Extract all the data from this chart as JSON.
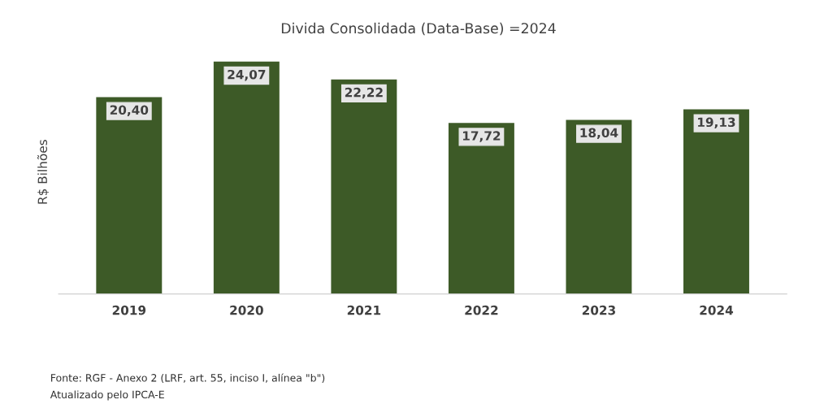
{
  "chart_data": {
    "type": "bar",
    "title": "Divida Consolidada (Data-Base) =2024",
    "ylabel": "R$ Bilhões",
    "categories": [
      "2019",
      "2020",
      "2021",
      "2022",
      "2023",
      "2024"
    ],
    "values": [
      20.4,
      24.07,
      22.22,
      17.72,
      18.04,
      19.13
    ],
    "value_labels": [
      "20,40",
      "24,07",
      "22,22",
      "17,72",
      "18,04",
      "19,13"
    ],
    "color": "#3d5a27",
    "grid": false,
    "legend": false,
    "tick_labels": "x",
    "annotations": [
      "Fonte: RGF - Anexo 2 (LRF, art. 55, inciso I, alínea \"b\")",
      "Atualizado pelo IPCA-E"
    ]
  }
}
